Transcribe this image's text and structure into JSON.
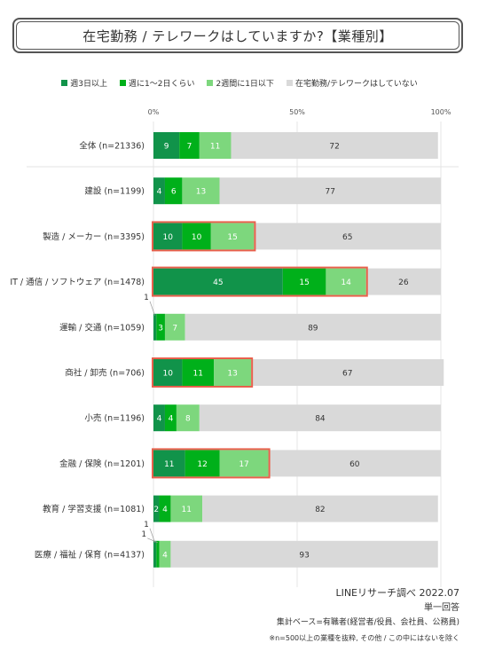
{
  "title": "在宅勤務 / テレワークはしていますか?【業種別】",
  "legend": [
    {
      "label": "週3日以上",
      "color": "#11934a"
    },
    {
      "label": "週に1〜2日くらい",
      "color": "#00b01a"
    },
    {
      "label": "2週間に1日以下",
      "color": "#7dd77d"
    },
    {
      "label": "在宅勤務/テレワークはしていない",
      "color": "#d9d9d9"
    }
  ],
  "chart_data": {
    "type": "bar",
    "orientation": "horizontal",
    "stacked": true,
    "xlim": [
      0,
      100
    ],
    "x_ticks": [
      "0%",
      "50%",
      "100%"
    ],
    "categories": [
      "全体 (n=21336)",
      "建設 (n=1199)",
      "製造 / メーカー (n=3395)",
      "IT / 通信 / ソフトウェア (n=1478)",
      "運輸 / 交通 (n=1059)",
      "商社 / 卸売 (n=706)",
      "小売 (n=1196)",
      "金融 / 保険 (n=1201)",
      "教育 / 学習支援 (n=1081)",
      "医療 / 福祉 / 保育 (n=4137)"
    ],
    "series": [
      {
        "name": "週3日以上",
        "values": [
          9,
          4,
          10,
          45,
          1,
          10,
          4,
          11,
          2,
          1
        ]
      },
      {
        "name": "週に1〜2日くらい",
        "values": [
          7,
          6,
          10,
          15,
          3,
          11,
          4,
          12,
          4,
          1
        ]
      },
      {
        "name": "2週間に1日以下",
        "values": [
          11,
          13,
          15,
          14,
          7,
          13,
          8,
          17,
          11,
          4
        ]
      },
      {
        "name": "在宅勤務/テレワークはしていない",
        "values": [
          72,
          77,
          65,
          26,
          89,
          67,
          84,
          60,
          82,
          93
        ]
      }
    ],
    "highlighted_rows": [
      2,
      3,
      5,
      7
    ],
    "highlight_color": "#e8604c",
    "grid": true
  },
  "footer": {
    "source": "LINEリサーチ調べ 2022.07",
    "answer_type": "単一回答",
    "base": "集計ベース=有職者(経営者/役員、会社員、公務員)",
    "note": "※n=500以上の業種を抜粋, その他 / この中にはないを除く"
  }
}
